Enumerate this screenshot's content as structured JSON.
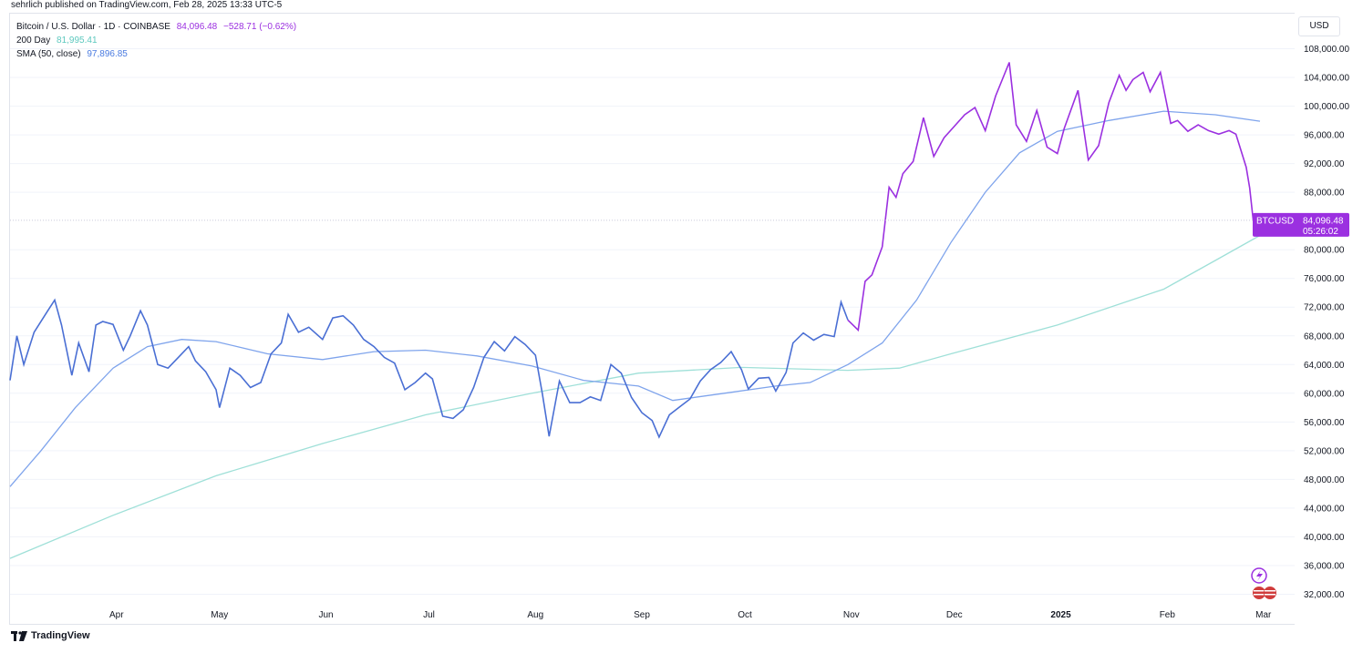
{
  "header": {
    "published": "sehrlich published on TradingView.com, Feb 28, 2025 13:33 UTC-5"
  },
  "currency": "USD",
  "legend": {
    "symbol": "Bitcoin / U.S. Dollar · 1D · COINBASE",
    "price": "84,096.48",
    "change": "−528.71 (−0.62%)",
    "ma200_label": "200 Day",
    "ma200_value": "81,995.41",
    "sma50_label": "SMA (50, close)",
    "sma50_value": "97,896.85"
  },
  "price_tag": {
    "symbol": "BTCUSD",
    "price": "84,096.48",
    "countdown": "05:26:02"
  },
  "footer": {
    "brand": "TradingView"
  },
  "colors": {
    "price_line_before": "#4a6fd4",
    "price_line_after": "#9b30e0",
    "sma50": "#7fa4ec",
    "ma200": "#9fe0d8",
    "tag_bg": "#9b30e0",
    "grid": "#f0f3fa"
  },
  "chart_data": {
    "type": "line",
    "ylim": [
      28000,
      112000
    ],
    "y_ticks": [
      "108,000.00",
      "104,000.00",
      "100,000.00",
      "96,000.00",
      "92,000.00",
      "88,000.00",
      "80,000.00",
      "76,000.00",
      "72,000.00",
      "68,000.00",
      "64,000.00",
      "60,000.00",
      "56,000.00",
      "52,000.00",
      "48,000.00",
      "44,000.00",
      "40,000.00",
      "36,000.00",
      "32,000.00"
    ],
    "x_ticks": [
      "Apr",
      "May",
      "Jun",
      "Jul",
      "Aug",
      "Sep",
      "Oct",
      "Nov",
      "Dec",
      "2025",
      "Feb",
      "Mar"
    ],
    "series": [
      {
        "name": "Bitcoin / U.S. Dollar",
        "color_split_after": "Nov",
        "points": [
          [
            "Mar 1",
            61800
          ],
          [
            "Mar 3",
            68000
          ],
          [
            "Mar 5",
            64000
          ],
          [
            "Mar 8",
            68500
          ],
          [
            "Mar 12",
            71500
          ],
          [
            "Mar 14",
            73000
          ],
          [
            "Mar 16",
            69500
          ],
          [
            "Mar 19",
            62500
          ],
          [
            "Mar 21",
            67000
          ],
          [
            "Mar 24",
            63000
          ],
          [
            "Mar 26",
            69500
          ],
          [
            "Mar 28",
            70000
          ],
          [
            "Mar 31",
            69600
          ],
          [
            "Apr 3",
            66000
          ],
          [
            "Apr 5",
            68000
          ],
          [
            "Apr 8",
            71500
          ],
          [
            "Apr 10",
            69500
          ],
          [
            "Apr 13",
            64000
          ],
          [
            "Apr 16",
            63500
          ],
          [
            "Apr 19",
            65000
          ],
          [
            "Apr 22",
            66500
          ],
          [
            "Apr 24",
            64500
          ],
          [
            "Apr 27",
            63000
          ],
          [
            "Apr 30",
            60500
          ],
          [
            "May 1",
            58000
          ],
          [
            "May 4",
            63500
          ],
          [
            "May 7",
            62500
          ],
          [
            "May 10",
            60800
          ],
          [
            "May 13",
            61500
          ],
          [
            "May 16",
            65500
          ],
          [
            "May 19",
            67000
          ],
          [
            "May 21",
            71000
          ],
          [
            "May 24",
            68500
          ],
          [
            "May 27",
            69200
          ],
          [
            "May 31",
            67500
          ],
          [
            "Jun 3",
            70500
          ],
          [
            "Jun 6",
            70800
          ],
          [
            "Jun 9",
            69500
          ],
          [
            "Jun 12",
            67500
          ],
          [
            "Jun 15",
            66500
          ],
          [
            "Jun 18",
            65000
          ],
          [
            "Jun 21",
            64200
          ],
          [
            "Jun 24",
            60500
          ],
          [
            "Jun 27",
            61500
          ],
          [
            "Jun 30",
            62800
          ],
          [
            "Jul 2",
            62000
          ],
          [
            "Jul 5",
            56800
          ],
          [
            "Jul 8",
            56500
          ],
          [
            "Jul 11",
            57700
          ],
          [
            "Jul 14",
            60800
          ],
          [
            "Jul 17",
            65000
          ],
          [
            "Jul 20",
            67200
          ],
          [
            "Jul 23",
            65900
          ],
          [
            "Jul 26",
            67900
          ],
          [
            "Jul 29",
            66800
          ],
          [
            "Aug 1",
            65300
          ],
          [
            "Aug 3",
            60000
          ],
          [
            "Aug 5",
            54000
          ],
          [
            "Aug 8",
            61700
          ],
          [
            "Aug 11",
            58700
          ],
          [
            "Aug 14",
            58700
          ],
          [
            "Aug 17",
            59500
          ],
          [
            "Aug 20",
            59000
          ],
          [
            "Aug 23",
            64000
          ],
          [
            "Aug 26",
            62800
          ],
          [
            "Aug 29",
            59400
          ],
          [
            "Sep 1",
            57300
          ],
          [
            "Sep 4",
            56200
          ],
          [
            "Sep 6",
            53900
          ],
          [
            "Sep 9",
            57000
          ],
          [
            "Sep 12",
            58100
          ],
          [
            "Sep 15",
            59200
          ],
          [
            "Sep 18",
            61700
          ],
          [
            "Sep 21",
            63300
          ],
          [
            "Sep 24",
            64300
          ],
          [
            "Sep 27",
            65800
          ],
          [
            "Sep 30",
            63300
          ],
          [
            "Oct 2",
            60600
          ],
          [
            "Oct 5",
            62100
          ],
          [
            "Oct 8",
            62200
          ],
          [
            "Oct 10",
            60300
          ],
          [
            "Oct 13",
            62900
          ],
          [
            "Oct 15",
            67000
          ],
          [
            "Oct 18",
            68400
          ],
          [
            "Oct 21",
            67400
          ],
          [
            "Oct 24",
            68200
          ],
          [
            "Oct 27",
            67900
          ],
          [
            "Oct 29",
            72700
          ],
          [
            "Oct 31",
            70200
          ],
          [
            "Nov 3",
            68800
          ],
          [
            "Nov 5",
            75600
          ],
          [
            "Nov 7",
            76500
          ],
          [
            "Nov 10",
            80400
          ],
          [
            "Nov 12",
            88700
          ],
          [
            "Nov 14",
            87300
          ],
          [
            "Nov 16",
            90600
          ],
          [
            "Nov 19",
            92300
          ],
          [
            "Nov 22",
            98400
          ],
          [
            "Nov 25",
            93000
          ],
          [
            "Nov 28",
            95600
          ],
          [
            "Dec 1",
            97200
          ],
          [
            "Dec 4",
            98800
          ],
          [
            "Dec 7",
            99800
          ],
          [
            "Dec 10",
            96600
          ],
          [
            "Dec 13",
            101400
          ],
          [
            "Dec 17",
            106100
          ],
          [
            "Dec 19",
            97400
          ],
          [
            "Dec 22",
            95100
          ],
          [
            "Dec 25",
            99400
          ],
          [
            "Dec 28",
            94300
          ],
          [
            "Dec 31",
            93400
          ],
          [
            "Jan 2",
            96900
          ],
          [
            "Jan 6",
            102200
          ],
          [
            "Jan 9",
            92500
          ],
          [
            "Jan 12",
            94500
          ],
          [
            "Jan 15",
            100500
          ],
          [
            "Jan 18",
            104300
          ],
          [
            "Jan 20",
            102200
          ],
          [
            "Jan 22",
            103700
          ],
          [
            "Jan 25",
            104700
          ],
          [
            "Jan 27",
            102000
          ],
          [
            "Jan 30",
            104700
          ],
          [
            "Feb 2",
            97600
          ],
          [
            "Feb 4",
            98000
          ],
          [
            "Feb 7",
            96500
          ],
          [
            "Feb 10",
            97400
          ],
          [
            "Feb 13",
            96600
          ],
          [
            "Feb 16",
            96100
          ],
          [
            "Feb 19",
            96600
          ],
          [
            "Feb 21",
            96100
          ],
          [
            "Feb 24",
            91500
          ],
          [
            "Feb 25",
            88600
          ],
          [
            "Feb 26",
            84200
          ],
          [
            "Feb 28",
            84096
          ]
        ]
      },
      {
        "name": "SMA (50, close)",
        "points": [
          [
            "Mar 1",
            47000
          ],
          [
            "Mar 10",
            52000
          ],
          [
            "Mar 20",
            58000
          ],
          [
            "Mar 31",
            63500
          ],
          [
            "Apr 10",
            66500
          ],
          [
            "Apr 20",
            67500
          ],
          [
            "Apr 30",
            67200
          ],
          [
            "May 15",
            65500
          ],
          [
            "May 31",
            64700
          ],
          [
            "Jun 15",
            65800
          ],
          [
            "Jun 30",
            66000
          ],
          [
            "Jul 15",
            65200
          ],
          [
            "Jul 31",
            63800
          ],
          [
            "Aug 15",
            61800
          ],
          [
            "Aug 31",
            61000
          ],
          [
            "Sep 10",
            59000
          ],
          [
            "Sep 25",
            60000
          ],
          [
            "Oct 10",
            61000
          ],
          [
            "Oct 20",
            61500
          ],
          [
            "Oct 31",
            64000
          ],
          [
            "Nov 10",
            67000
          ],
          [
            "Nov 20",
            73000
          ],
          [
            "Nov 30",
            81000
          ],
          [
            "Dec 10",
            88000
          ],
          [
            "Dec 20",
            93500
          ],
          [
            "Dec 31",
            96500
          ],
          [
            "Jan 15",
            98000
          ],
          [
            "Jan 31",
            99300
          ],
          [
            "Feb 15",
            98800
          ],
          [
            "Feb 28",
            97900
          ]
        ]
      },
      {
        "name": "200 Day",
        "points": [
          [
            "Mar 1",
            37000
          ],
          [
            "Mar 31",
            43000
          ],
          [
            "Apr 30",
            48500
          ],
          [
            "May 31",
            53000
          ],
          [
            "Jun 30",
            57000
          ],
          [
            "Jul 31",
            60000
          ],
          [
            "Aug 31",
            62800
          ],
          [
            "Sep 30",
            63600
          ],
          [
            "Oct 31",
            63200
          ],
          [
            "Nov 15",
            63500
          ],
          [
            "Nov 30",
            65500
          ],
          [
            "Dec 31",
            69500
          ],
          [
            "Jan 31",
            74500
          ],
          [
            "Feb 15",
            78500
          ],
          [
            "Feb 28",
            81995
          ]
        ]
      }
    ]
  }
}
